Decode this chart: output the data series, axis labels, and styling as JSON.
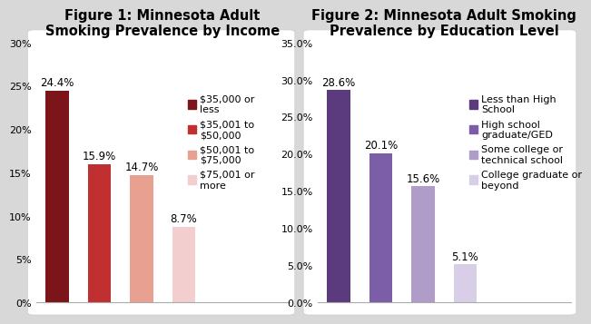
{
  "fig1": {
    "title": "Figure 1: Minnesota Adult\nSmoking Prevalence by Income",
    "values": [
      24.4,
      15.9,
      14.7,
      8.7
    ],
    "legend_labels": [
      "$35,000 or\nless",
      "$35,001 to\n$50,000",
      "$50,001 to\n$75,000",
      "$75,001 or\nmore"
    ],
    "colors": [
      "#7B1519",
      "#C03030",
      "#E8A090",
      "#F2CECE"
    ],
    "ylim": [
      0,
      30
    ],
    "yticks": [
      0,
      5,
      10,
      15,
      20,
      25,
      30
    ],
    "yticklabels": [
      "0%",
      "5%",
      "10%",
      "15%",
      "20%",
      "25%",
      "30%"
    ],
    "annotations": [
      "24.4%",
      "15.9%",
      "14.7%",
      "8.7%"
    ]
  },
  "fig2": {
    "title": "Figure 2: Minnesota Adult Smoking\nPrevalence by Education Level",
    "values": [
      28.6,
      20.1,
      15.6,
      5.1
    ],
    "legend_labels": [
      "Less than High\nSchool",
      "High school\ngraduate/GED",
      "Some college or\ntechnical school",
      "College graduate or\nbeyond"
    ],
    "colors": [
      "#5B3A7E",
      "#7B5EA7",
      "#B09CC8",
      "#D9CEE8"
    ],
    "ylim": [
      0,
      35
    ],
    "yticks": [
      0,
      5,
      10,
      15,
      20,
      25,
      30,
      35
    ],
    "yticklabels": [
      "0.0%",
      "5.0%",
      "10.0%",
      "15.0%",
      "20.0%",
      "25.0%",
      "30.0%",
      "35.0%"
    ],
    "annotations": [
      "28.6%",
      "20.1%",
      "15.6%",
      "5.1%"
    ]
  },
  "bg_color": "#D8D8D8",
  "panel_color": "#FFFFFF",
  "title_fontsize": 10.5,
  "annotation_fontsize": 8.5,
  "tick_fontsize": 8,
  "legend_fontsize": 8
}
